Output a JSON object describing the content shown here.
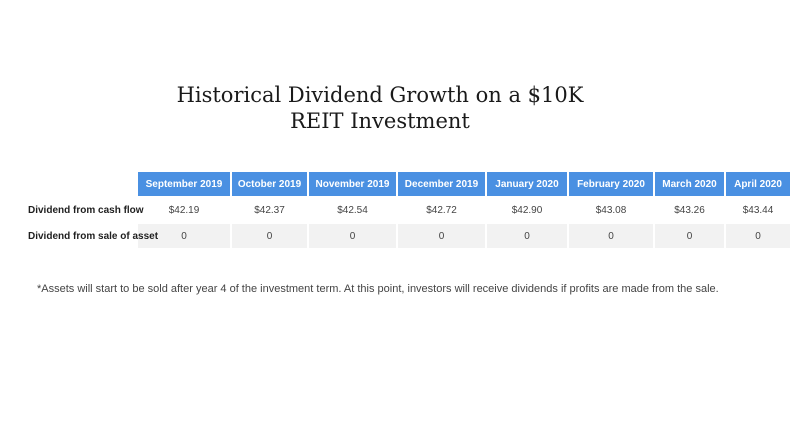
{
  "title": "Historical Dividend Growth on a $10K REIT Investment",
  "table": {
    "columns": [
      "September 2019",
      "October 2019",
      "November 2019",
      "December 2019",
      "January 2020",
      "February 2020",
      "March 2020",
      "April 2020"
    ],
    "rows": [
      {
        "label": "Dividend from cash flow",
        "values": [
          "$42.19",
          "$42.37",
          "$42.54",
          "$42.72",
          "$42.90",
          "$43.08",
          "$43.26",
          "$43.44"
        ]
      },
      {
        "label": "Dividend from sale of asset",
        "values": [
          "0",
          "0",
          "0",
          "0",
          "0",
          "0",
          "0",
          "0"
        ]
      }
    ]
  },
  "footnote": "*Assets will start to be sold after year 4 of the investment term. At this point, investors will receive dividends if profits are made from the sale.",
  "colors": {
    "header_bg": "#4a90e2",
    "header_text": "#ffffff",
    "row_stripe": "#f2f2f2"
  }
}
